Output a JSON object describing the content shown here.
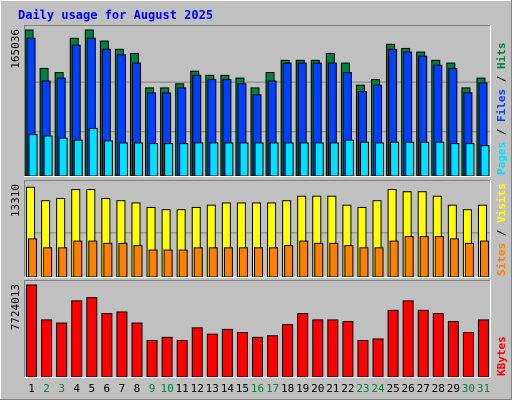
{
  "colors": {
    "background": "#c0c0c0",
    "panel": "#c0c0c0",
    "title": "#0000ff",
    "hits": "#008040",
    "files": "#0040ff",
    "pages": "#00e0ff",
    "visits": "#ffff00",
    "sites": "#ff8000",
    "kbytes": "#ff0000",
    "weekday_label": "#000000",
    "weekend_label": "#008040"
  },
  "chart_data": [
    {
      "type": "bar",
      "title": "Daily usage for August 2025",
      "panel": "hits-files-pages",
      "axis_label_max": "165036",
      "ylim": [
        0,
        165036
      ],
      "legend": [
        "Pages",
        "Files",
        "Hits"
      ],
      "categories": [
        "1",
        "2",
        "3",
        "4",
        "5",
        "6",
        "7",
        "8",
        "9",
        "10",
        "11",
        "12",
        "13",
        "14",
        "15",
        "16",
        "17",
        "18",
        "19",
        "20",
        "21",
        "22",
        "23",
        "24",
        "25",
        "26",
        "27",
        "28",
        "29",
        "30",
        "31"
      ],
      "weekend_days": [
        "2",
        "3",
        "9",
        "10",
        "16",
        "17",
        "23",
        "24",
        "30",
        "31"
      ],
      "series": [
        {
          "name": "Hits",
          "values": [
            165036,
            121587,
            116913,
            155685,
            165036,
            152568,
            143217,
            138542,
            99580,
            99580,
            104255,
            118472,
            113797,
            113797,
            110680,
            99580,
            116913,
            130750,
            130750,
            130750,
            138542,
            127633,
            102697,
            108930,
            148867,
            144192,
            140080,
            130750,
            127633,
            99580,
            110680
          ]
        },
        {
          "name": "Files",
          "values": [
            155685,
            107372,
            110680,
            147893,
            155685,
            143217,
            136983,
            127633,
            93931,
            93931,
            99580,
            113797,
            108930,
            108930,
            104255,
            91762,
            107372,
            127633,
            127633,
            127633,
            127633,
            116913,
            95490,
            102697,
            143217,
            140080,
            135425,
            125295,
            121587,
            94126,
            105034
          ]
        },
        {
          "name": "Pages",
          "values": [
            46753,
            45195,
            42857,
            40519,
            53767,
            39740,
            37402,
            37402,
            36623,
            36623,
            36623,
            37402,
            37402,
            37402,
            37402,
            37402,
            37402,
            37402,
            37402,
            37402,
            37402,
            40519,
            38181,
            37402,
            38181,
            38181,
            38181,
            38181,
            36623,
            36623,
            34285
          ]
        }
      ]
    },
    {
      "type": "bar",
      "panel": "visits-sites",
      "axis_label_max": "13310",
      "ylim": [
        0,
        13310
      ],
      "legend": [
        "Sites",
        "Visits"
      ],
      "categories": [
        "1",
        "2",
        "3",
        "4",
        "5",
        "6",
        "7",
        "8",
        "9",
        "10",
        "11",
        "12",
        "13",
        "14",
        "15",
        "16",
        "17",
        "18",
        "19",
        "20",
        "21",
        "22",
        "23",
        "24",
        "25",
        "26",
        "27",
        "28",
        "29",
        "30",
        "31"
      ],
      "series": [
        {
          "name": "Visits",
          "values": [
            12985,
            11037,
            11361,
            12660,
            12660,
            11361,
            11037,
            10713,
            10064,
            9740,
            9740,
            10064,
            10388,
            10713,
            10713,
            10713,
            10713,
            11037,
            11685,
            11685,
            11685,
            10388,
            10064,
            11037,
            12660,
            12335,
            12335,
            11685,
            10388,
            9740,
            10388
          ]
        },
        {
          "name": "Sites",
          "values": [
            5518,
            4221,
            4221,
            5194,
            5194,
            4870,
            4870,
            4546,
            3897,
            3897,
            3897,
            4221,
            4221,
            4221,
            4221,
            4221,
            4221,
            4546,
            5194,
            4870,
            4870,
            4546,
            4221,
            4221,
            5194,
            5843,
            5843,
            5843,
            5518,
            4870,
            5194
          ]
        }
      ]
    },
    {
      "type": "bar",
      "panel": "kbytes",
      "axis_label_max": "7724013",
      "ylim": [
        0,
        7724013
      ],
      "legend": [
        "KBytes"
      ],
      "categories": [
        "1",
        "2",
        "3",
        "4",
        "5",
        "6",
        "7",
        "8",
        "9",
        "10",
        "11",
        "12",
        "13",
        "14",
        "15",
        "16",
        "17",
        "18",
        "19",
        "20",
        "21",
        "22",
        "23",
        "24",
        "25",
        "26",
        "27",
        "28",
        "29",
        "30",
        "31"
      ],
      "series": [
        {
          "name": "KBytes",
          "values": [
            7724013,
            4794249,
            4527908,
            6392300,
            6658642,
            5326936,
            5460107,
            4527908,
            3063020,
            3329359,
            3063020,
            4128395,
            3595714,
            3995227,
            3729042,
            3329359,
            3462547,
            4394725,
            5326936,
            4794249,
            4794249,
            4661078,
            3063020,
            3196191,
            5593281,
            6392300,
            5593281,
            5326936,
            4661078,
            3729042,
            4794249
          ]
        }
      ]
    }
  ]
}
